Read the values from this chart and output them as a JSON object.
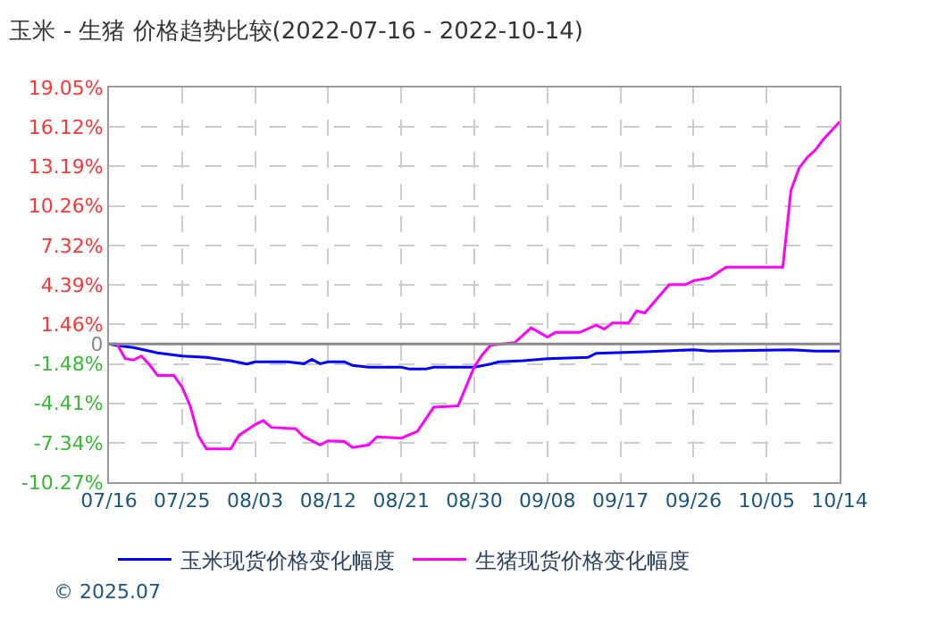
{
  "chart_data": {
    "type": "line",
    "title": "玉米 - 生猪 价格趋势比较(2022-07-16 - 2022-10-14)",
    "series": [
      {
        "name": "玉米现货价格变化幅度",
        "color": "#0000ff",
        "x": [
          "2022-07-16",
          "2022-07-17",
          "2022-07-19",
          "2022-07-22",
          "2022-07-25",
          "2022-07-28",
          "2022-07-31",
          "2022-08-02",
          "2022-08-03",
          "2022-08-07",
          "2022-08-09",
          "2022-08-10",
          "2022-08-11",
          "2022-08-12",
          "2022-08-14",
          "2022-08-15",
          "2022-08-17",
          "2022-08-21",
          "2022-08-22",
          "2022-08-24",
          "2022-08-25",
          "2022-08-30",
          "2022-09-01",
          "2022-09-02",
          "2022-09-05",
          "2022-09-08",
          "2022-09-13",
          "2022-09-14",
          "2022-09-20",
          "2022-09-26",
          "2022-09-28",
          "2022-10-08",
          "2022-10-11",
          "2022-10-14"
        ],
        "values": [
          0,
          -0.13,
          -0.27,
          -0.67,
          -0.9,
          -1.0,
          -1.25,
          -1.5,
          -1.33,
          -1.33,
          -1.47,
          -1.15,
          -1.47,
          -1.33,
          -1.33,
          -1.6,
          -1.73,
          -1.73,
          -1.87,
          -1.87,
          -1.73,
          -1.73,
          -1.5,
          -1.33,
          -1.25,
          -1.1,
          -1.0,
          -0.7,
          -0.58,
          -0.44,
          -0.53,
          -0.44,
          -0.53,
          -0.53
        ]
      },
      {
        "name": "生猪现货价格变化幅度",
        "color": "#ff00ff",
        "x": [
          "2022-07-16",
          "2022-07-17",
          "2022-07-18",
          "2022-07-19",
          "2022-07-20",
          "2022-07-21",
          "2022-07-22",
          "2022-07-24",
          "2022-07-25",
          "2022-07-26",
          "2022-07-27",
          "2022-07-28",
          "2022-07-31",
          "2022-08-01",
          "2022-08-03",
          "2022-08-04",
          "2022-08-05",
          "2022-08-08",
          "2022-08-09",
          "2022-08-11",
          "2022-08-12",
          "2022-08-14",
          "2022-08-15",
          "2022-08-17",
          "2022-08-18",
          "2022-08-21",
          "2022-08-23",
          "2022-08-25",
          "2022-08-28",
          "2022-08-30",
          "2022-08-31",
          "2022-09-01",
          "2022-09-04",
          "2022-09-06",
          "2022-09-08",
          "2022-09-09",
          "2022-09-12",
          "2022-09-14",
          "2022-09-15",
          "2022-09-16",
          "2022-09-18",
          "2022-09-19",
          "2022-09-20",
          "2022-09-23",
          "2022-09-25",
          "2022-09-26",
          "2022-09-28",
          "2022-09-30",
          "2022-10-07",
          "2022-10-08",
          "2022-10-09",
          "2022-10-10",
          "2022-10-11",
          "2022-10-12",
          "2022-10-14"
        ],
        "values": [
          0,
          0,
          -1.1,
          -1.2,
          -0.9,
          -1.55,
          -2.35,
          -2.35,
          -3.2,
          -4.6,
          -6.8,
          -7.8,
          -7.8,
          -6.8,
          -6.0,
          -5.7,
          -6.2,
          -6.3,
          -6.9,
          -7.5,
          -7.2,
          -7.25,
          -7.7,
          -7.5,
          -6.9,
          -7.0,
          -6.5,
          -4.7,
          -4.6,
          -1.7,
          -0.8,
          -0.1,
          0.1,
          1.2,
          0.5,
          0.85,
          0.85,
          1.4,
          1.1,
          1.55,
          1.55,
          2.45,
          2.3,
          4.4,
          4.4,
          4.7,
          4.9,
          5.7,
          5.7,
          11.4,
          13.05,
          13.85,
          14.4,
          15.2,
          16.5
        ]
      }
    ],
    "xlim": [
      "2022-07-16",
      "2022-10-14"
    ],
    "xticks": [
      {
        "value": "2022-07-16",
        "label": "07/16"
      },
      {
        "value": "2022-07-25",
        "label": "07/25"
      },
      {
        "value": "2022-08-03",
        "label": "08/03"
      },
      {
        "value": "2022-08-12",
        "label": "08/12"
      },
      {
        "value": "2022-08-21",
        "label": "08/21"
      },
      {
        "value": "2022-08-30",
        "label": "08/30"
      },
      {
        "value": "2022-09-08",
        "label": "09/08"
      },
      {
        "value": "2022-09-17",
        "label": "09/17"
      },
      {
        "value": "2022-09-26",
        "label": "09/26"
      },
      {
        "value": "2022-10-05",
        "label": "10/05"
      },
      {
        "value": "2022-10-14",
        "label": "10/14"
      }
    ],
    "ylim": [
      -10.27,
      19.05
    ],
    "yticks": [
      {
        "value": -10.27,
        "label": "-10.27%"
      },
      {
        "value": -7.34,
        "label": "-7.34%"
      },
      {
        "value": -4.41,
        "label": "-4.41%"
      },
      {
        "value": -1.48,
        "label": "-1.48%"
      },
      0,
      {
        "value": 1.46,
        "label": "1.46%"
      },
      {
        "value": 4.39,
        "label": "4.39%"
      },
      {
        "value": 7.32,
        "label": "7.32%"
      },
      {
        "value": 10.26,
        "label": "10.26%"
      },
      {
        "value": 13.19,
        "label": "13.19%"
      },
      {
        "value": 16.12,
        "label": "16.12%"
      },
      {
        "value": 19.05,
        "label": "19.05%"
      }
    ],
    "ref_lines": [
      {
        "axis": "y",
        "value": 0,
        "color": "#888888"
      }
    ],
    "grid": true,
    "legend": "bottom",
    "line_style": "solid",
    "marker": "none",
    "annotations": [
      "© 2025.07"
    ]
  }
}
